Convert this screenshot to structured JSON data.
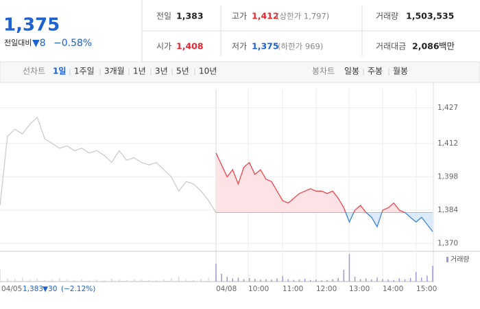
{
  "quote": {
    "price": "1,375",
    "change_label": "전일대비",
    "change": "▼8",
    "change_rate": "−0.58%"
  },
  "stats": [
    {
      "label": "전일",
      "value": "1,383"
    },
    {
      "label": "고가",
      "value": "1,412",
      "note": "(상한가 1,797)"
    },
    {
      "label": "거래량",
      "value": "1,503,535"
    },
    {
      "label": "시가",
      "value": "1,408"
    },
    {
      "label": "저가",
      "value": "1,375",
      "note": "(하한가 969)"
    },
    {
      "label": "거래대금",
      "value": "2,086",
      "unit": "백만"
    }
  ],
  "tabs": {
    "line_label": "선차트",
    "line": [
      "1일",
      "1주일",
      "3개월",
      "1년",
      "3년",
      "5년",
      "10년"
    ],
    "candle_label": "봉차트",
    "candle": [
      "일봉",
      "주봉",
      "월봉"
    ]
  },
  "prev_summary": {
    "price": "1,383",
    "change": "▼30",
    "rate": "(−2.12%)"
  },
  "chart_data": {
    "type": "line",
    "x_labels": [
      "04/05",
      "04/08",
      "10:00",
      "11:00",
      "12:00",
      "13:00",
      "14:00",
      "15:00"
    ],
    "ylim": [
      1367,
      1429
    ],
    "yticks": [
      {
        "value": 1427,
        "label": "1,427"
      },
      {
        "value": 1412,
        "label": "1,412"
      },
      {
        "value": 1398,
        "label": "1,398"
      },
      {
        "value": 1384,
        "label": "1,384"
      },
      {
        "value": 1370,
        "label": "1,370"
      }
    ],
    "baseline": 1383,
    "grid": true,
    "prev_series": {
      "color": "#cccccc",
      "values": [
        1386,
        1415,
        1418,
        1416,
        1420,
        1423,
        1414,
        1412,
        1410,
        1411,
        1409,
        1410,
        1408,
        1409,
        1407,
        1404,
        1409,
        1405,
        1406,
        1404,
        1403,
        1404,
        1401,
        1398,
        1392,
        1396,
        1395,
        1392,
        1388,
        1383
      ]
    },
    "series": {
      "up_color": "#f0434a",
      "down_color": "#3b82d8",
      "up_fill": "#fde3e5",
      "down_fill": "#dcebf9",
      "values": [
        1408,
        1403,
        1398,
        1401,
        1395,
        1402,
        1404,
        1399,
        1401,
        1397,
        1396,
        1392,
        1388,
        1387,
        1389,
        1391,
        1392,
        1393,
        1392,
        1392,
        1391,
        1392,
        1389,
        1385,
        1379,
        1384,
        1386,
        1383,
        1381,
        1377,
        1384,
        1385,
        1387,
        1384,
        1383,
        1381,
        1379,
        1381,
        1378,
        1375
      ]
    },
    "volume": {
      "name": "거래량",
      "color": "#a693d6",
      "prev_values": [
        30,
        8,
        6,
        10,
        5,
        7,
        4,
        6,
        9,
        5,
        4,
        6,
        3,
        5,
        4,
        7,
        5,
        4,
        6,
        5,
        4,
        3,
        6,
        8,
        12,
        5,
        4,
        6,
        9,
        14
      ],
      "values": [
        45,
        20,
        12,
        8,
        10,
        6,
        9,
        7,
        5,
        6,
        5,
        8,
        14,
        6,
        4,
        5,
        7,
        4,
        5,
        3,
        4,
        6,
        9,
        30,
        70,
        12,
        6,
        8,
        5,
        10,
        6,
        5,
        4,
        8,
        6,
        9,
        25,
        10,
        15,
        40
      ]
    }
  }
}
